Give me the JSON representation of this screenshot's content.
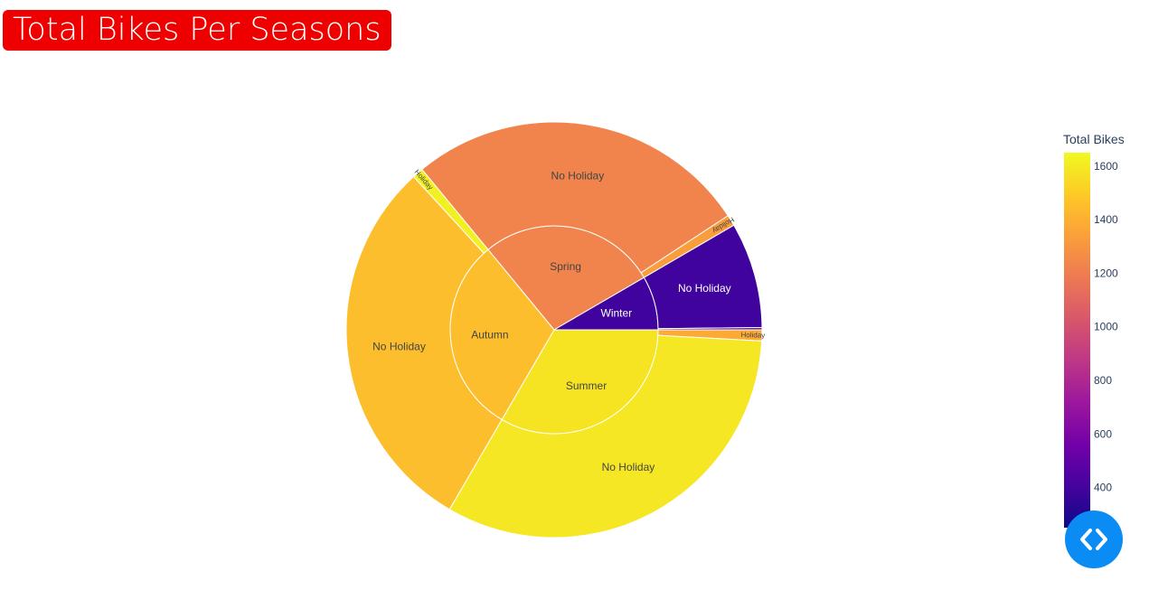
{
  "chart_data": {
    "type": "sunburst",
    "title": "Total Bikes Per Seasons",
    "colorbar": {
      "title": "Total Bikes",
      "range": [
        250,
        1650
      ],
      "ticks": [
        "1600",
        "1400",
        "1200",
        "1000",
        "800",
        "600",
        "400"
      ],
      "tick_values": [
        1600,
        1400,
        1200,
        1000,
        800,
        600,
        400
      ],
      "colorscale": "plasma"
    },
    "seasons": [
      {
        "name": "Summer",
        "value": 1950000,
        "color_value": 1580,
        "children": [
          {
            "name": "Holiday",
            "value": 50000,
            "color_value": 1380
          },
          {
            "name": "No Holiday",
            "value": 1900000,
            "color_value": 1590
          }
        ]
      },
      {
        "name": "Autumn",
        "value": 1790000,
        "color_value": 1450,
        "children": [
          {
            "name": "No Holiday",
            "value": 1740000,
            "color_value": 1450
          },
          {
            "name": "Holiday",
            "value": 50000,
            "color_value": 1620
          }
        ]
      },
      {
        "name": "Spring",
        "value": 1610000,
        "color_value": 1230,
        "children": [
          {
            "name": "No Holiday",
            "value": 1560000,
            "color_value": 1230
          },
          {
            "name": "Holiday",
            "value": 50000,
            "color_value": 1330
          }
        ]
      },
      {
        "name": "Winter",
        "value": 490000,
        "color_value": 390,
        "children": [
          {
            "name": "No Holiday",
            "value": 480000,
            "color_value": 390
          },
          {
            "name": "Holiday",
            "value": 10000,
            "color_value": 430
          }
        ]
      }
    ]
  },
  "ui": {
    "code_button_icon": "code-brackets-icon",
    "accent_color": "#0b8cf5",
    "title_bg_color": "#ee0000"
  }
}
